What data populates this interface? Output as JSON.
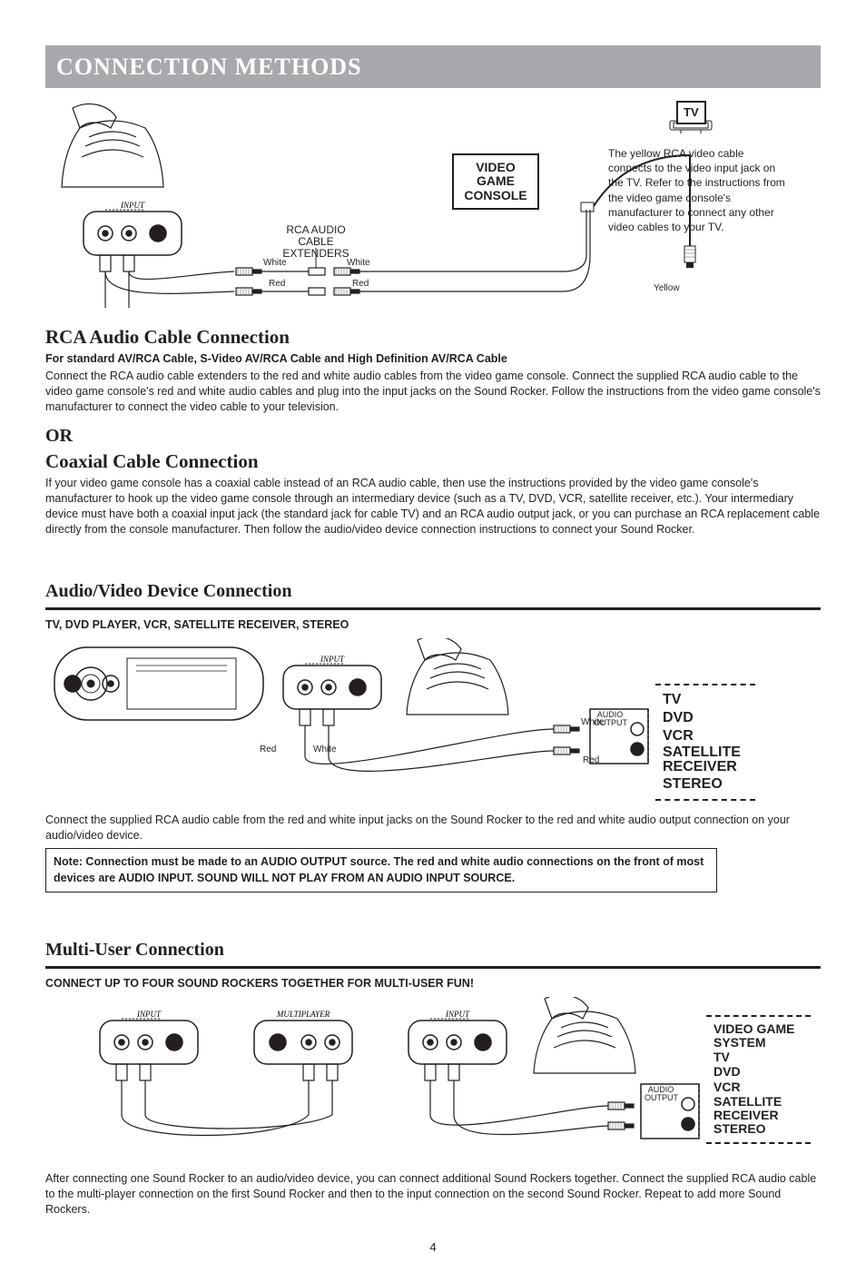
{
  "page": {
    "title_bar": "CONNECTION METHODS",
    "number": "4"
  },
  "diagram1": {
    "vgc_label": "VIDEO\nGAME\nCONSOLE",
    "tv_label": "TV",
    "tv_caption": "The yellow RCA video cable connects to the video input jack on the TV. Refer to the instructions from the video game console's manufacturer to connect any other video cables to your TV.",
    "cable_title": "RCA AUDIO CABLE\nEXTENDERS",
    "white_left": "White",
    "white_right": "White",
    "red_left": "Red",
    "red_right": "Red",
    "yellow": "Yellow",
    "input": "INPUT"
  },
  "rca": {
    "heading": "RCA Audio Cable Connection",
    "sub": "For standard AV/RCA Cable, S-Video AV/RCA Cable and High Definition AV/RCA Cable",
    "body": "Connect the RCA audio cable extenders to the red and white audio cables from the video game console. Connect the supplied RCA audio cable to the video game console's red and white audio cables and plug into the input jacks on the Sound Rocker. Follow the instructions from the video game console's manufacturer to connect the video cable to your television."
  },
  "or": "OR",
  "coax": {
    "heading": "Coaxial Cable Connection",
    "body": "If your video game console has a coaxial cable instead of an RCA audio cable, then use the instructions provided by the video game console's manufacturer to hook up the video game console through an intermediary device (such as a TV, DVD, VCR, satellite receiver, etc.). Your intermediary device must have both a coaxial input jack (the standard jack for cable TV) and an RCA audio output jack, or you can purchase an RCA replacement cable directly from the console manufacturer. Then follow the audio/video device connection instructions to connect your Sound Rocker."
  },
  "avd": {
    "heading": "Audio/Video Device Connection",
    "sub": "TV, DVD PLAYER, VCR, SATELLITE RECEIVER, STEREO",
    "red": "Red",
    "white": "White",
    "white2": "White",
    "red2": "Red",
    "audio_output": "AUDIO\nOUTPUT",
    "devices": [
      "TV",
      "DVD",
      "VCR",
      "SATELLITE RECEIVER",
      "STEREO"
    ],
    "body": "Connect the supplied RCA audio cable from the red and white input jacks on the Sound Rocker to the red and white audio output connection on your audio/video device.",
    "note": "Note: Connection must be made to an AUDIO OUTPUT source. The red and white audio connections on the front of most devices are AUDIO INPUT. SOUND WILL NOT PLAY FROM AN AUDIO INPUT SOURCE.",
    "input": "INPUT"
  },
  "multi": {
    "heading": "Multi-User Connection",
    "sub": "CONNECT UP TO FOUR SOUND ROCKERS TOGETHER FOR MULTI-USER FUN!",
    "input": "INPUT",
    "multiplayer": "MULTIPLAYER",
    "audio_output": "AUDIO\nOUTPUT",
    "devices": [
      "VIDEO GAME SYSTEM",
      "TV",
      "DVD",
      "VCR",
      "SATELLITE RECEIVER",
      "STEREO"
    ],
    "body": "After connecting one Sound Rocker to an audio/video device, you can connect additional Sound Rockers together. Connect the supplied RCA audio cable to the multi-player connection on the first Sound Rocker and then to the input connection on the second Sound Rocker. Repeat to add more Sound Rockers."
  },
  "colors": {
    "bar_bg": "#a7a9ac",
    "text": "#231f20",
    "hatch": "#6d6e71"
  }
}
